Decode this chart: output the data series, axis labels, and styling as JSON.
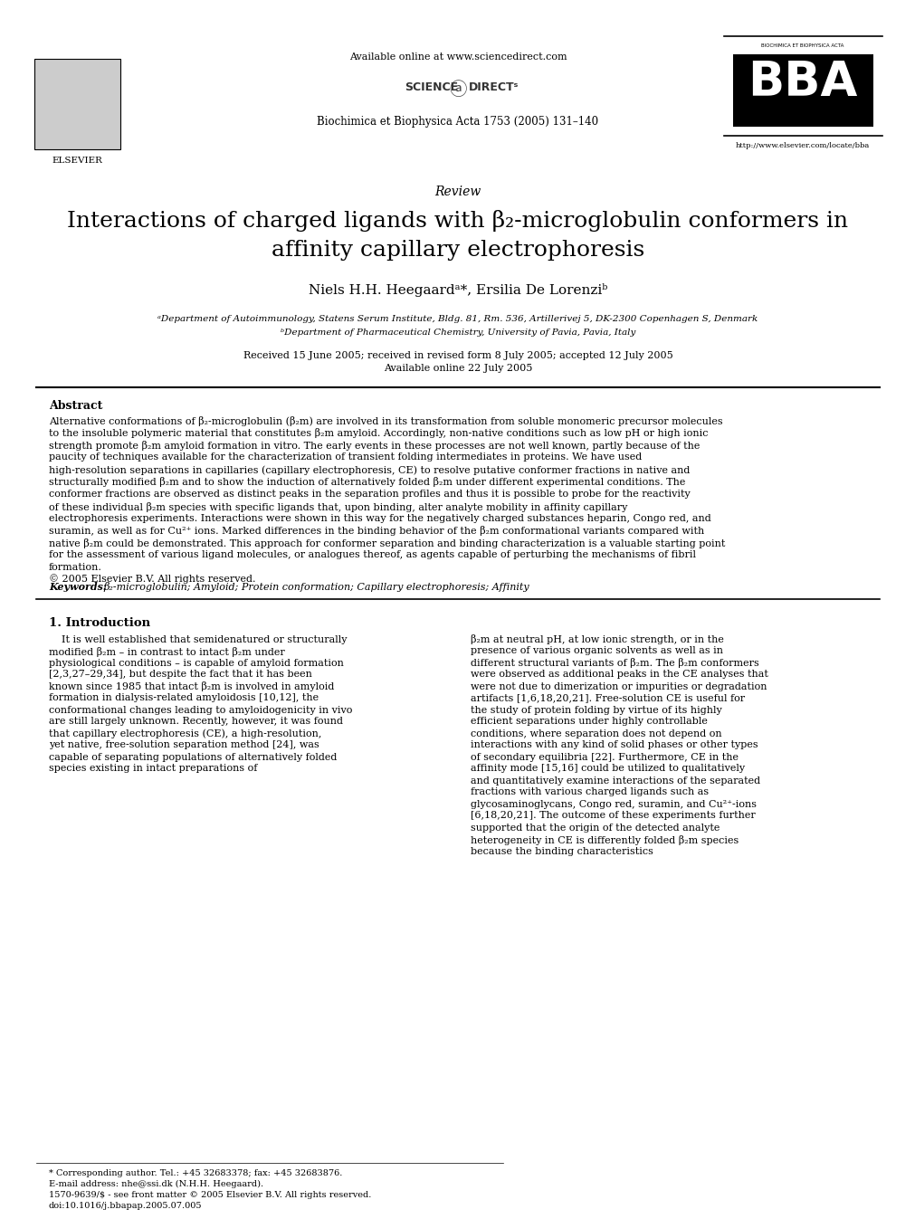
{
  "bg_color": "#ffffff",
  "top_bar_text": "Available online at www.sciencedirect.com",
  "journal_line": "Biochimica et Biophysica Acta 1753 (2005) 131–140",
  "bba_url": "http://www.elsevier.com/locate/bba",
  "section_label": "Review",
  "title_line1": "Interactions of charged ligands with β₂-microglobulin conformers in",
  "title_line2": "affinity capillary electrophoresis",
  "authors": "Niels H.H. Heegaardᵃ*, Ersilia De Lorenziᵇ",
  "affil_a": "ᵃDepartment of Autoimmunology, Statens Serum Institute, Bldg. 81, Rm. 536, Artillerivej 5, DK-2300 Copenhagen S, Denmark",
  "affil_b": "ᵇDepartment of Pharmaceutical Chemistry, University of Pavia, Pavia, Italy",
  "dates": "Received 15 June 2005; received in revised form 8 July 2005; accepted 12 July 2005",
  "available": "Available online 22 July 2005",
  "abstract_title": "Abstract",
  "abstract_text": "Alternative conformations of β₂-microglobulin (β₂m) are involved in its transformation from soluble monomeric precursor molecules to the insoluble polymeric material that constitutes β₂m amyloid. Accordingly, non-native conditions such as low pH or high ionic strength promote β₂m amyloid formation in vitro. The early events in these processes are not well known, partly because of the paucity of techniques available for the characterization of transient folding intermediates in proteins. We have used high-resolution separations in capillaries (capillary electrophoresis, CE) to resolve putative conformer fractions in native and structurally modified β₂m and to show the induction of alternatively folded β₂m under different experimental conditions. The conformer fractions are observed as distinct peaks in the separation profiles and thus it is possible to probe for the reactivity of these individual β₂m species with specific ligands that, upon binding, alter analyte mobility in affinity capillary electrophoresis experiments. Interactions were shown in this way for the negatively charged substances heparin, Congo red, and suramin, as well as for Cu²⁺ ions. Marked differences in the binding behavior of the β₂m conformational variants compared with native β₂m could be demonstrated. This approach for conformer separation and binding characterization is a valuable starting point for the assessment of various ligand molecules, or analogues thereof, as agents capable of perturbing the mechanisms of fibril formation.\n© 2005 Elsevier B.V. All rights reserved.",
  "keywords_label": "Keywords:",
  "keywords_text": "β₂-microglobulin; Amyloid; Protein conformation; Capillary electrophoresis; Affinity",
  "intro_title": "1. Introduction",
  "intro_col1": "It is well established that semidenatured or structurally modified β₂m – in contrast to intact β₂m under physiological conditions – is capable of amyloid formation [2,3,27–29,34], but despite the fact that it has been known since 1985 that intact β₂m is involved in amyloid formation in dialysis-related amyloidosis [10,12], the conformational changes leading to amyloidogenicity in vivo are still largely unknown. Recently, however, it was found that capillary electrophoresis (CE), a high-resolution, yet native, free-solution separation method [24], was capable of separating populations of alternatively folded species existing in intact preparations of",
  "intro_col2": "β₂m at neutral pH, at low ionic strength, or in the presence of various organic solvents as well as in different structural variants of β₂m. The β₂m conformers were observed as additional peaks in the CE analyses that were not due to dimerization or impurities or degradation artifacts [1,6,18,20,21]. Free-solution CE is useful for the study of protein folding by virtue of its highly efficient separations under highly controllable conditions, where separation does not depend on interactions with any kind of solid phases or other types of secondary equilibria [22]. Furthermore, CE in the affinity mode [15,16] could be utilized to qualitatively and quantitatively examine interactions of the separated fractions with various charged ligands such as glycosaminoglycans, Congo red, suramin, and Cu²⁺-ions [6,18,20,21]. The outcome of these experiments further supported that the origin of the detected analyte heterogeneity in CE is differently folded β₂m species because the binding characteristics",
  "footnote_star": "* Corresponding author. Tel.: +45 32683378; fax: +45 32683876.",
  "footnote_email": "E-mail address: nhe@ssi.dk (N.H.H. Heegaard).",
  "issn_line": "1570-9639/$ - see front matter © 2005 Elsevier B.V. All rights reserved.",
  "doi_line": "doi:10.1016/j.bbapap.2005.07.005"
}
